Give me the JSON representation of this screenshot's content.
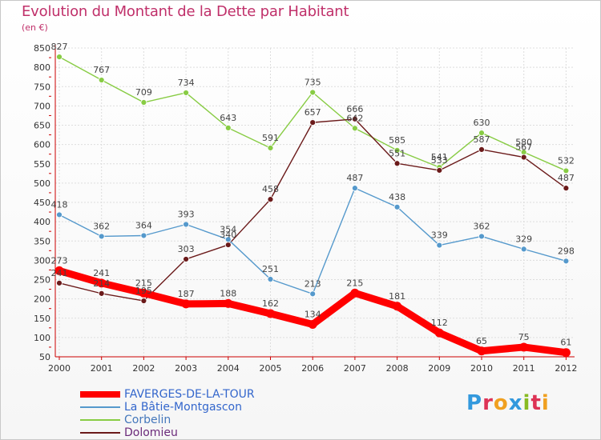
{
  "chart_data": {
    "type": "line",
    "title": "Evolution du Montant de la Dette par Habitant",
    "subtitle": "(en €)",
    "x": [
      "2000",
      "2001",
      "2002",
      "2003",
      "2004",
      "2005",
      "2006",
      "2007",
      "2008",
      "2009",
      "2010",
      "2011",
      "2012"
    ],
    "ylim": [
      50,
      850
    ],
    "yticks": [
      50,
      100,
      150,
      200,
      250,
      300,
      350,
      400,
      450,
      500,
      550,
      600,
      650,
      700,
      750,
      800,
      850
    ],
    "grid": true,
    "legend_position": "bottom-left",
    "series": [
      {
        "name": "FAVERGES-DE-LA-TOUR",
        "color": "#ff0000",
        "values": [
          273,
          241,
          215,
          187,
          188,
          162,
          134,
          215,
          181,
          112,
          65,
          75,
          61
        ]
      },
      {
        "name": "La Bâtie-Montgascon",
        "color": "#5599cc",
        "values": [
          418,
          362,
          364,
          393,
          354,
          251,
          213,
          487,
          438,
          339,
          362,
          329,
          298
        ]
      },
      {
        "name": "Corbelin",
        "color": "#88cc44",
        "values": [
          827,
          767,
          709,
          734,
          643,
          591,
          735,
          642,
          585,
          541,
          630,
          580,
          532
        ]
      },
      {
        "name": "Dolomieu",
        "color": "#6b1a1a",
        "values": [
          241,
          214,
          195,
          303,
          340,
          458,
          657,
          666,
          551,
          533,
          587,
          567,
          487
        ]
      }
    ]
  },
  "logo": {
    "text": "Proxiti"
  }
}
